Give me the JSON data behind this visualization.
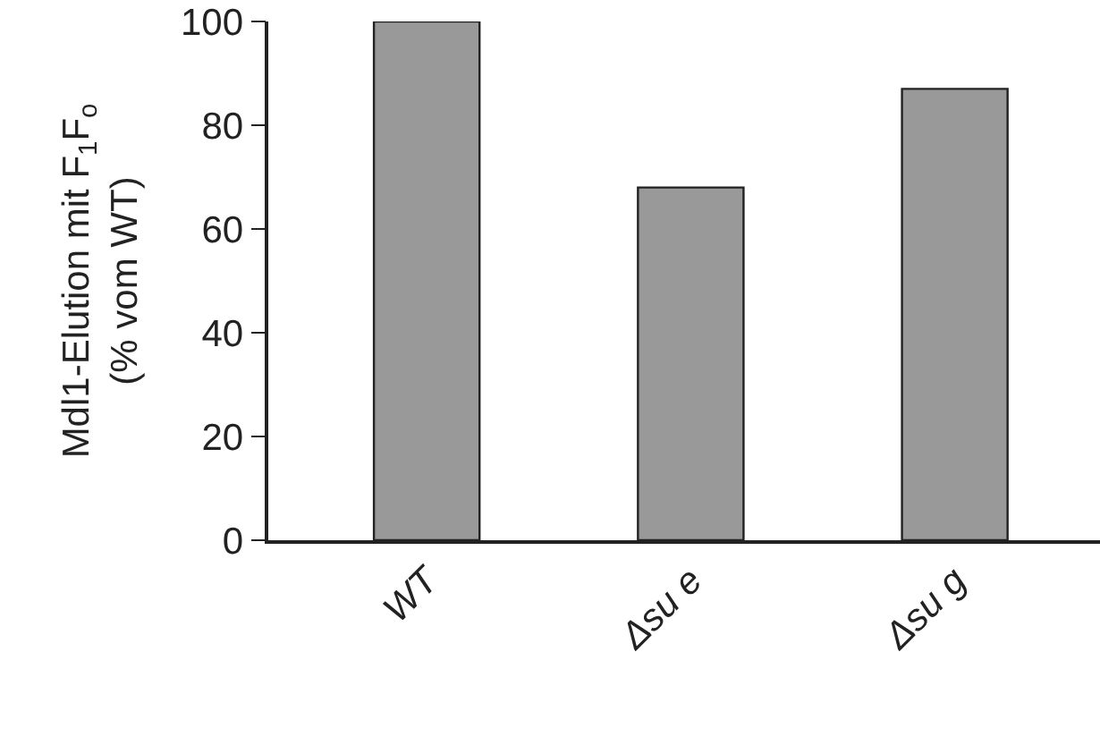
{
  "chart_data": {
    "type": "bar",
    "ylabel": "Mdl1-Elution mit F$_{1}$F$_{o}$\n(% vom WT)",
    "categories": [
      "WT",
      "Δsu e",
      "Δsu g"
    ],
    "values": [
      100,
      68,
      87
    ],
    "color": "#999999",
    "ylim": [
      0,
      100
    ],
    "yticks": [
      0,
      20,
      40,
      60,
      80,
      100
    ],
    "grid": false
  }
}
